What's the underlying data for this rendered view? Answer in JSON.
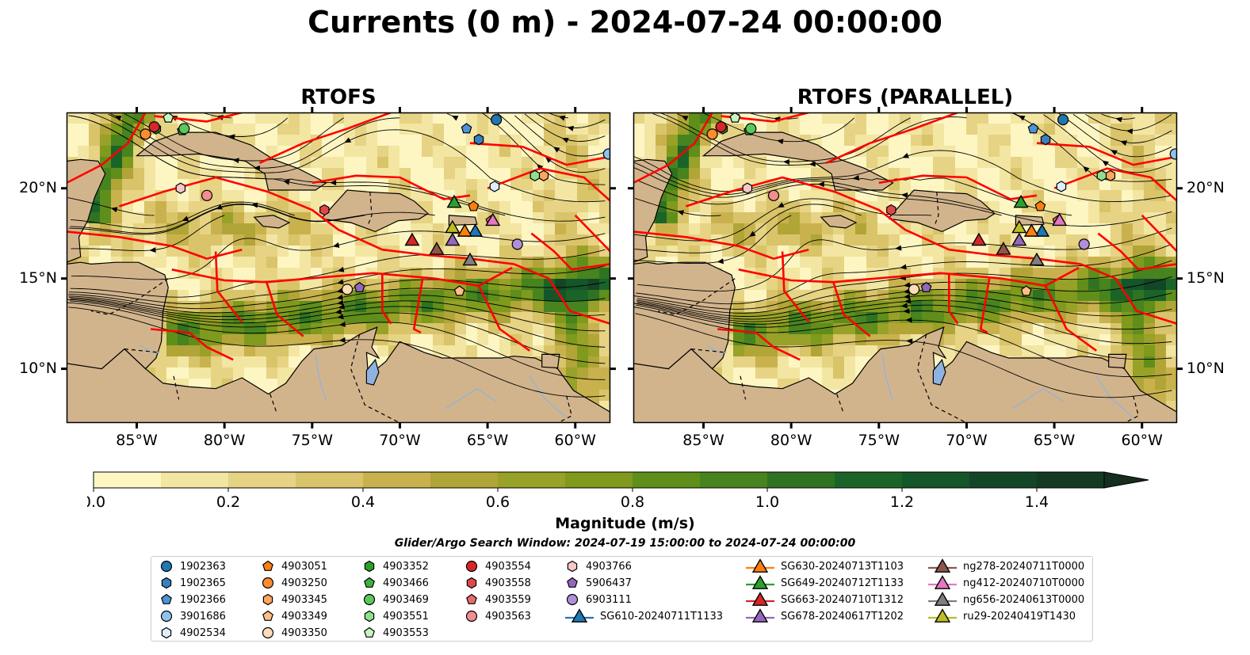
{
  "title": "Currents (0 m) - 2024-07-24 00:00:00",
  "panels": [
    {
      "title": "RTOFS",
      "key": "left"
    },
    {
      "title": "RTOFS (PARALLEL)",
      "key": "right"
    }
  ],
  "axes": {
    "lon_ticks": [
      "85°W",
      "80°W",
      "75°W",
      "70°W",
      "65°W",
      "60°W"
    ],
    "lon_values": [
      -85,
      -80,
      -75,
      -70,
      -65,
      -60
    ],
    "lat_ticks": [
      "20°N",
      "15°N",
      "10°N"
    ],
    "lat_values": [
      20,
      15,
      10
    ],
    "lon_range": [
      -89,
      -58
    ],
    "lat_range": [
      7,
      24.2
    ]
  },
  "colorbar": {
    "label": "Magnitude (m/s)",
    "ticks": [
      "0.0",
      "0.2",
      "0.4",
      "0.6",
      "0.8",
      "1.0",
      "1.2",
      "1.4"
    ],
    "tick_values": [
      0.0,
      0.2,
      0.4,
      0.6,
      0.8,
      1.0,
      1.2,
      1.4
    ],
    "range": [
      0,
      1.5
    ],
    "extend": "max",
    "colors": [
      "#fdf6c3",
      "#f3e6a2",
      "#e6d384",
      "#d9c46a",
      "#c9b24e",
      "#b1a538",
      "#98a128",
      "#7f9a1d",
      "#5f8e1b",
      "#47831e",
      "#2f7322",
      "#1b6428",
      "#15552a",
      "#134626",
      "#143a22",
      "#152e1d"
    ]
  },
  "search_window": "Glider/Argo Search Window: 2024-07-19 15:00:00 to 2024-07-24 00:00:00",
  "legend": {
    "columns": [
      [
        {
          "label": "1902363",
          "marker": "circle",
          "color": "#1f77b4"
        },
        {
          "label": "1902365",
          "marker": "hexagon",
          "color": "#3a7fbf"
        },
        {
          "label": "1902366",
          "marker": "pentagon",
          "color": "#4f93d6"
        },
        {
          "label": "3901686",
          "marker": "circle",
          "color": "#8ec2ee"
        },
        {
          "label": "4902534",
          "marker": "hexagon",
          "color": "#ddeeff"
        }
      ],
      [
        {
          "label": "4903051",
          "marker": "pentagon",
          "color": "#ff7f0e"
        },
        {
          "label": "4903250",
          "marker": "circle",
          "color": "#ff8c2e"
        },
        {
          "label": "4903345",
          "marker": "hexagon",
          "color": "#ffa55c"
        },
        {
          "label": "4903349",
          "marker": "pentagon",
          "color": "#ffbe85"
        },
        {
          "label": "4903350",
          "marker": "circle",
          "color": "#ffdcb8"
        }
      ],
      [
        {
          "label": "4903352",
          "marker": "hexagon",
          "color": "#2ca02c"
        },
        {
          "label": "4903466",
          "marker": "pentagon",
          "color": "#3fb23f"
        },
        {
          "label": "4903469",
          "marker": "circle",
          "color": "#5ac85a"
        },
        {
          "label": "4903551",
          "marker": "hexagon",
          "color": "#8ee08e"
        },
        {
          "label": "4903553",
          "marker": "pentagon",
          "color": "#c6f5c0"
        }
      ],
      [
        {
          "label": "4903554",
          "marker": "circle",
          "color": "#d62728"
        },
        {
          "label": "4903558",
          "marker": "hexagon",
          "color": "#e04848"
        },
        {
          "label": "4903559",
          "marker": "pentagon",
          "color": "#e86a6a"
        },
        {
          "label": "4903563",
          "marker": "circle",
          "color": "#f28e8e"
        }
      ],
      [
        {
          "label": "4903766",
          "marker": "hexagon",
          "color": "#f7c6c6"
        },
        {
          "label": "5906437",
          "marker": "pentagon",
          "color": "#9467bd"
        },
        {
          "label": "6903111",
          "marker": "circle",
          "color": "#b08fd8"
        },
        {
          "label": "SG610-20240711T1133",
          "marker": "triangle-line",
          "color": "#1f77b4"
        }
      ],
      [
        {
          "label": "SG630-20240713T1103",
          "marker": "triangle-line",
          "color": "#ff7f0e"
        },
        {
          "label": "SG649-20240712T1133",
          "marker": "triangle-line",
          "color": "#2ca02c"
        },
        {
          "label": "SG663-20240710T1312",
          "marker": "triangle-line",
          "color": "#d62728"
        },
        {
          "label": "SG678-20240617T1202",
          "marker": "triangle-line",
          "color": "#9467bd"
        }
      ],
      [
        {
          "label": "ng278-20240711T0000",
          "marker": "triangle-line",
          "color": "#8c564b"
        },
        {
          "label": "ng412-20240710T0000",
          "marker": "triangle-line",
          "color": "#e377c2"
        },
        {
          "label": "ng656-20240613T0000",
          "marker": "triangle-line",
          "color": "#7f7f7f"
        },
        {
          "label": "ru29-20240419T1430",
          "marker": "triangle-line",
          "color": "#bcbd22"
        }
      ]
    ]
  },
  "chart_data": {
    "type": "map",
    "variable": "Currents (0 m)",
    "time": "2024-07-24 00:00:00",
    "units": "m/s",
    "panels": [
      "RTOFS",
      "RTOFS (PARALLEL)"
    ],
    "lon_range": [
      -89,
      -58
    ],
    "lat_range": [
      7,
      24.2
    ],
    "observations": [
      {
        "id": "1902363",
        "lon": -64.5,
        "lat": 23.8
      },
      {
        "id": "1902365",
        "lon": -65.5,
        "lat": 22.7
      },
      {
        "id": "1902366",
        "lon": -66.2,
        "lat": 23.3
      },
      {
        "id": "3901686",
        "lon": -58.1,
        "lat": 21.9
      },
      {
        "id": "4902534",
        "lon": -64.6,
        "lat": 20.1
      },
      {
        "id": "4903051",
        "lon": -65.8,
        "lat": 19.0
      },
      {
        "id": "4903250",
        "lon": -84.5,
        "lat": 23.0
      },
      {
        "id": "4903345",
        "lon": -61.8,
        "lat": 20.7
      },
      {
        "id": "4903349",
        "lon": -66.6,
        "lat": 14.3
      },
      {
        "id": "4903350",
        "lon": -73.0,
        "lat": 14.4
      },
      {
        "id": "4903352",
        "lon": -83.9,
        "lat": 23.3
      },
      {
        "id": "4903466",
        "lon": -82.4,
        "lat": 23.2
      },
      {
        "id": "4903469",
        "lon": -82.3,
        "lat": 23.3
      },
      {
        "id": "4903551",
        "lon": -62.3,
        "lat": 20.7
      },
      {
        "id": "4903553",
        "lon": -83.2,
        "lat": 23.9
      },
      {
        "id": "4903554",
        "lon": -84.0,
        "lat": 23.4
      },
      {
        "id": "4903558",
        "lon": -74.3,
        "lat": 18.8
      },
      {
        "id": "4903559",
        "lon": -64.8,
        "lat": 18.2
      },
      {
        "id": "4903563",
        "lon": -81.0,
        "lat": 19.6
      },
      {
        "id": "4903766",
        "lon": -82.5,
        "lat": 20.0
      },
      {
        "id": "5906437",
        "lon": -72.3,
        "lat": 14.5
      },
      {
        "id": "6903111",
        "lon": -63.3,
        "lat": 16.9
      },
      {
        "id": "SG610-20240711T1133",
        "lon": -65.7,
        "lat": 17.6
      },
      {
        "id": "SG630-20240713T1103",
        "lon": -66.3,
        "lat": 17.6
      },
      {
        "id": "SG649-20240712T1133",
        "lon": -66.9,
        "lat": 19.2
      },
      {
        "id": "SG663-20240710T1312",
        "lon": -69.3,
        "lat": 17.1
      },
      {
        "id": "SG678-20240617T1202",
        "lon": -67.0,
        "lat": 17.1
      },
      {
        "id": "ng278-20240711T0000",
        "lon": -67.9,
        "lat": 16.6
      },
      {
        "id": "ng412-20240710T0000",
        "lon": -64.7,
        "lat": 18.2
      },
      {
        "id": "ng656-20240613T0000",
        "lon": -66.0,
        "lat": 16.0
      },
      {
        "id": "ru29-20240419T1430",
        "lon": -67.0,
        "lat": 17.8
      }
    ]
  }
}
